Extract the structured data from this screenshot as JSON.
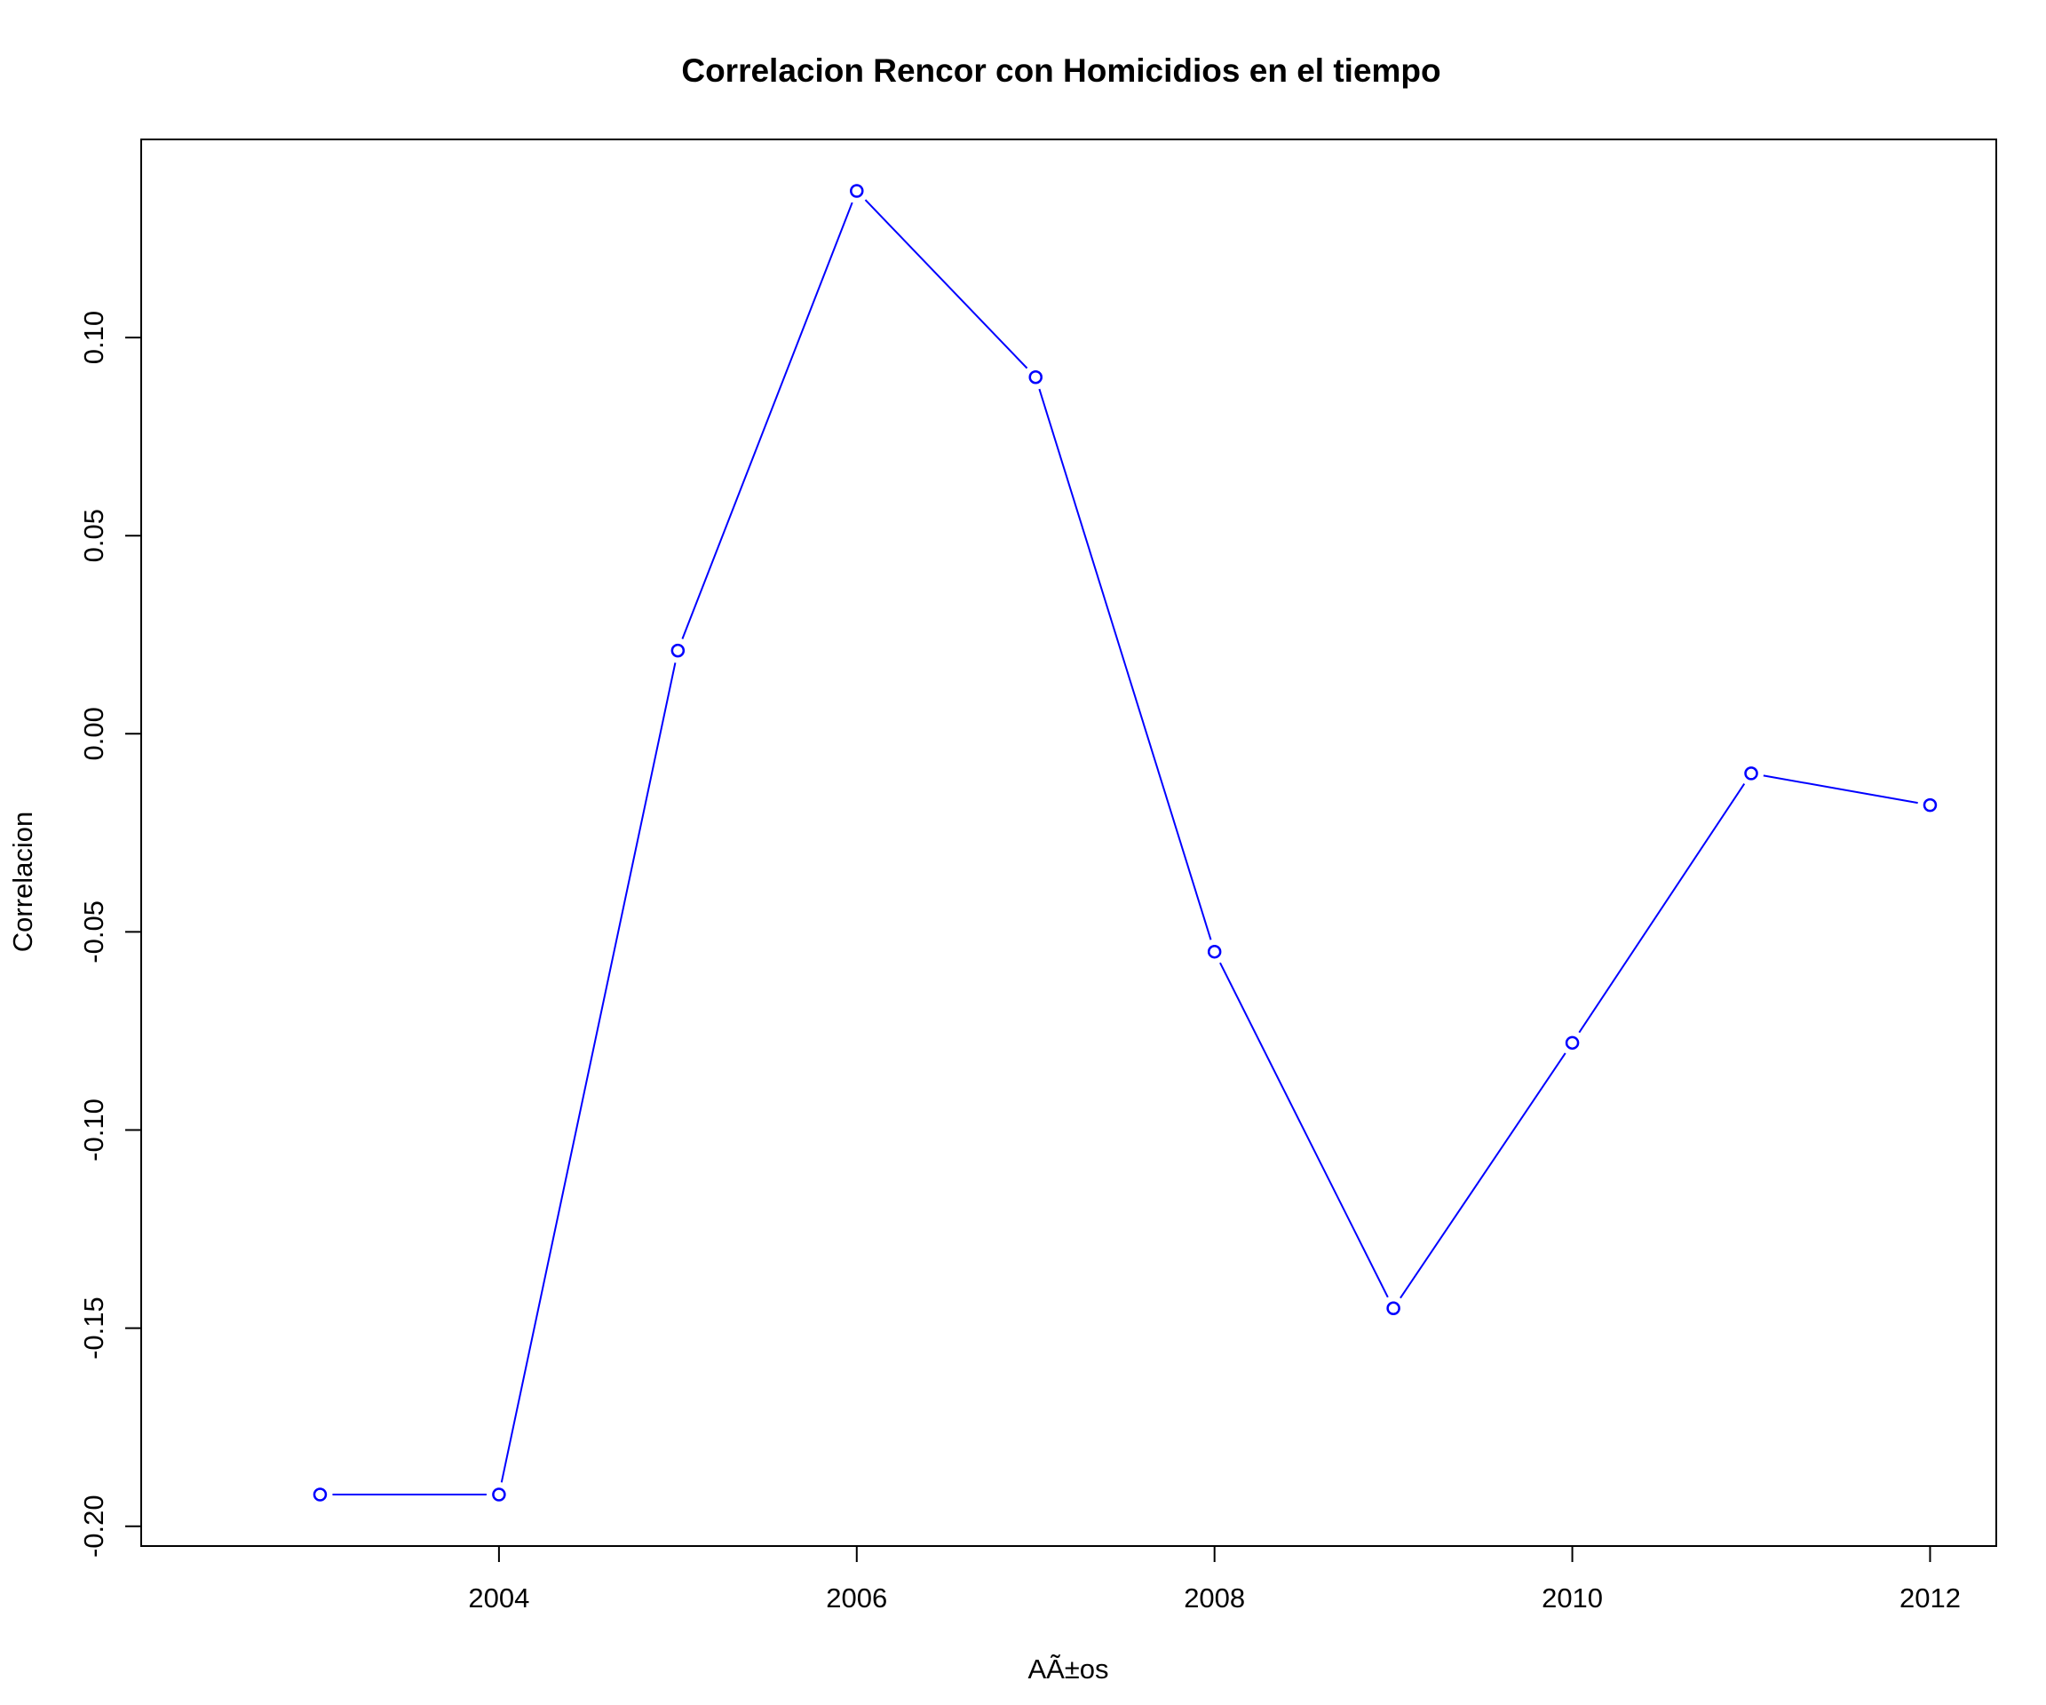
{
  "chart_data": {
    "type": "line",
    "title": "Correlacion Rencor con Homicidios en el tiempo",
    "xlabel": "AÃ±os",
    "ylabel": "Correlacion",
    "x": [
      2003,
      2004,
      2005,
      2006,
      2007,
      2008,
      2009,
      2010,
      2011,
      2012
    ],
    "y": [
      -0.192,
      -0.192,
      0.021,
      0.137,
      0.09,
      -0.055,
      -0.145,
      -0.078,
      -0.01,
      -0.018
    ],
    "xlim": [
      2002.0,
      2012.37
    ],
    "ylim": [
      -0.205,
      0.15
    ],
    "x_ticks": [
      2004,
      2006,
      2008,
      2010,
      2012
    ],
    "x_tick_labels": [
      "2004",
      "2006",
      "2008",
      "2010",
      "2012"
    ],
    "y_ticks": [
      -0.2,
      -0.15,
      -0.1,
      -0.05,
      0.0,
      0.05,
      0.1
    ],
    "y_tick_labels": [
      "-0.20",
      "-0.15",
      "-0.10",
      "-0.05",
      "0.00",
      "0.05",
      "0.10"
    ],
    "series_color": "#0000ff",
    "marker": "open-circle",
    "grid": false,
    "legend": "none"
  }
}
